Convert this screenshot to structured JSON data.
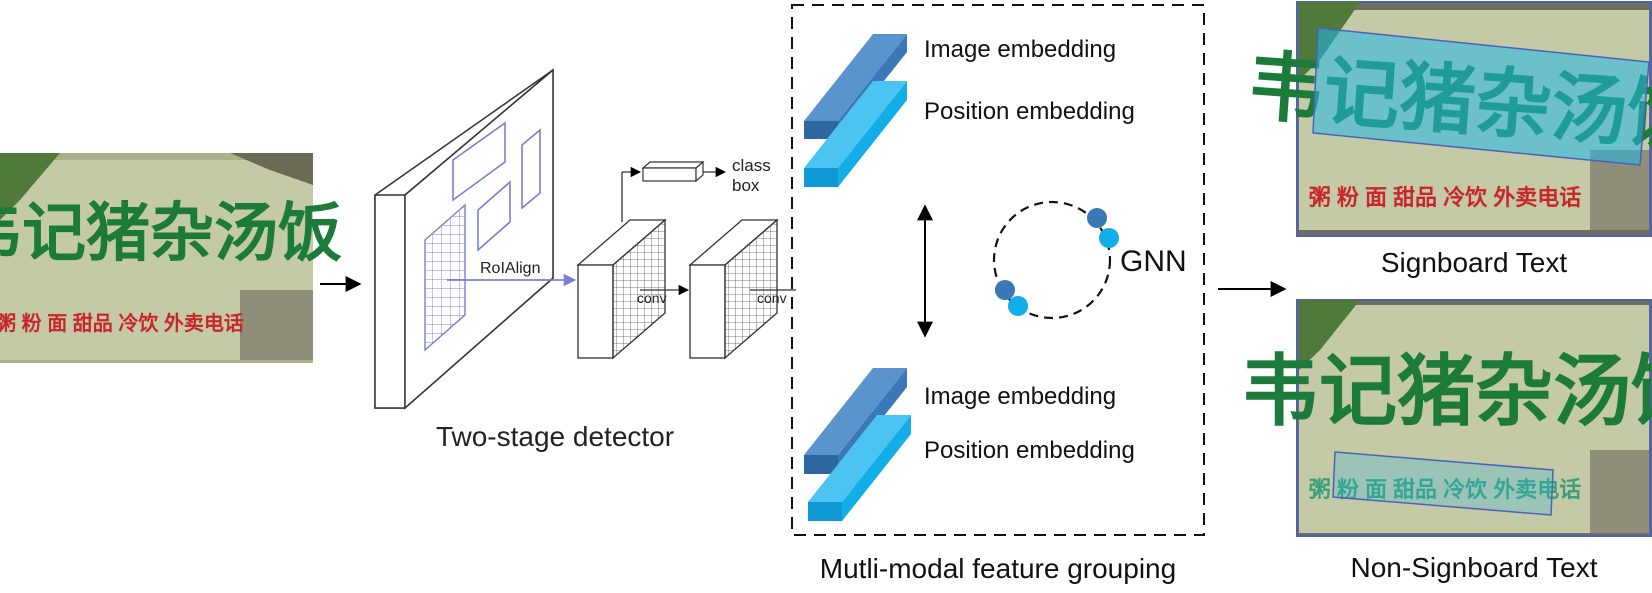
{
  "diagram": {
    "input_sign": {
      "main_text": "韦记猪杂汤饭",
      "sub_text": "粥 粉 面 甜品 冷饮 外卖电话"
    },
    "detector": {
      "roi_label": "RoIAlign",
      "conv1_label": "conv",
      "conv2_label": "conv",
      "class_label": "class",
      "box_label": "box",
      "caption": "Two-stage detector"
    },
    "grouping": {
      "top_image_label": "Image embedding",
      "top_position_label": "Position embedding",
      "bottom_image_label": "Image embedding",
      "bottom_position_label": "Position embedding",
      "gnn_label": "GNN",
      "caption": "Mutli-modal feature grouping"
    },
    "outputs": {
      "signboard_caption": "Signboard Text",
      "non_signboard_caption": "Non-Signboard Text"
    },
    "colors": {
      "dark_blue": "#3a78b8",
      "light_blue": "#12aee8",
      "roi_purple": "#7b7fd0",
      "sign_bg": "#c4c9a6",
      "sign_green": "#1c7a3a",
      "sign_red": "#c8262a"
    }
  }
}
